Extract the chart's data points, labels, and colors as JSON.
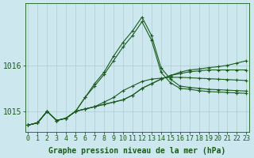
{
  "xlabel": "Graphe pression niveau de la mer (hPa)",
  "background_color": "#cce8ee",
  "grid_color": "#aacccc",
  "line_color": "#1a5c1a",
  "series": [
    [
      1014.7,
      1014.75,
      1015.0,
      1014.8,
      1014.85,
      1015.0,
      1015.05,
      1015.1,
      1015.15,
      1015.2,
      1015.25,
      1015.35,
      1015.5,
      1015.6,
      1015.7,
      1015.78,
      1015.85,
      1015.9,
      1015.92,
      1015.95,
      1015.97,
      1016.0,
      1016.05,
      1016.1
    ],
    [
      1014.7,
      1014.75,
      1015.0,
      1014.8,
      1014.85,
      1015.0,
      1015.05,
      1015.1,
      1015.15,
      1015.2,
      1015.25,
      1015.35,
      1015.5,
      1015.6,
      1015.7,
      1015.78,
      1015.82,
      1015.86,
      1015.88,
      1015.9,
      1015.9,
      1015.9,
      1015.9,
      1015.9
    ],
    [
      1014.7,
      1014.75,
      1015.0,
      1014.8,
      1014.85,
      1015.0,
      1015.05,
      1015.1,
      1015.2,
      1015.3,
      1015.45,
      1015.55,
      1015.65,
      1015.7,
      1015.72,
      1015.74,
      1015.74,
      1015.73,
      1015.72,
      1015.71,
      1015.7,
      1015.69,
      1015.68,
      1015.67
    ],
    [
      1014.7,
      1014.75,
      1015.0,
      1014.8,
      1014.85,
      1015.0,
      1015.3,
      1015.55,
      1015.8,
      1016.1,
      1016.4,
      1016.65,
      1016.95,
      1016.55,
      1015.85,
      1015.62,
      1015.5,
      1015.48,
      1015.45,
      1015.43,
      1015.42,
      1015.41,
      1015.4,
      1015.39
    ],
    [
      1014.7,
      1014.75,
      1015.0,
      1014.8,
      1014.85,
      1015.0,
      1015.3,
      1015.6,
      1015.85,
      1016.2,
      1016.5,
      1016.75,
      1017.05,
      1016.65,
      1015.95,
      1015.7,
      1015.55,
      1015.52,
      1015.5,
      1015.48,
      1015.47,
      1015.46,
      1015.45,
      1015.44
    ]
  ],
  "hours": [
    0,
    1,
    2,
    3,
    4,
    5,
    6,
    7,
    8,
    9,
    10,
    11,
    12,
    13,
    14,
    15,
    16,
    17,
    18,
    19,
    20,
    21,
    22,
    23
  ],
  "ylim": [
    1014.55,
    1017.35
  ],
  "yticks": [
    1015.0,
    1016.0
  ],
  "ytick_labels": [
    "1015",
    "1016"
  ],
  "tick_fontsize": 6,
  "label_fontsize": 7
}
